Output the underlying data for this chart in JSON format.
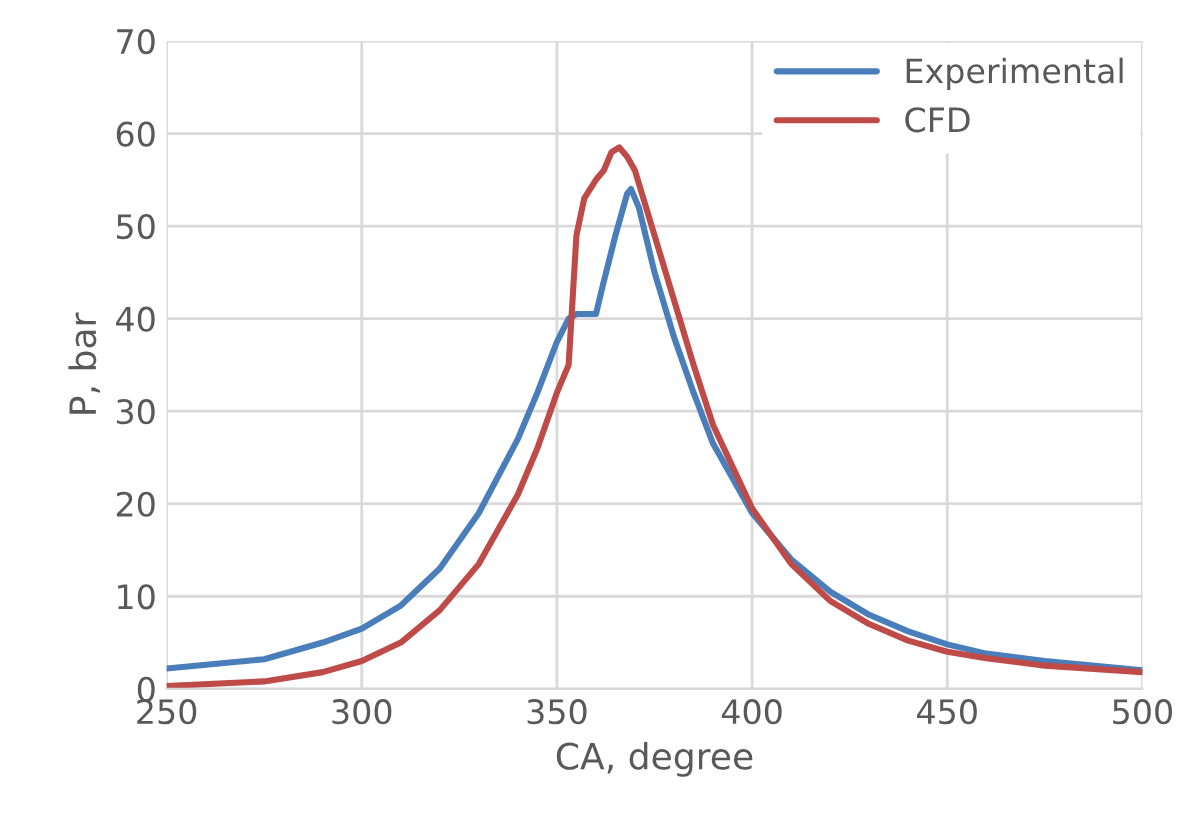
{
  "chart_data": {
    "type": "line",
    "xlabel": "CA, degree",
    "ylabel": "P, bar",
    "xlim": [
      250,
      500
    ],
    "xticks": [
      250,
      300,
      350,
      400,
      450,
      500
    ],
    "ylim": [
      0,
      70
    ],
    "yticks": [
      0,
      10,
      20,
      30,
      40,
      50,
      60,
      70
    ],
    "grid": true,
    "legend": "top right",
    "marker": "none",
    "line_style": "solid",
    "series": [
      {
        "name": "Experimental",
        "color": "#4a7ebb",
        "x": [
          250,
          275,
          290,
          300,
          310,
          320,
          330,
          340,
          345,
          350,
          353,
          355,
          360,
          362,
          365,
          368,
          369,
          371,
          375,
          380,
          385,
          390,
          400,
          410,
          420,
          430,
          440,
          450,
          460,
          475,
          500
        ],
        "values": [
          2.2,
          3.2,
          5,
          6.5,
          9,
          13,
          19,
          27,
          32,
          37.5,
          40,
          40.5,
          40.5,
          44,
          49,
          53.5,
          54,
          52,
          45,
          38,
          32,
          26.5,
          19,
          14,
          10.5,
          8,
          6.2,
          4.8,
          3.8,
          3,
          2
        ]
      },
      {
        "name": "CFD",
        "color": "#be4b48",
        "x": [
          250,
          275,
          290,
          300,
          310,
          320,
          330,
          340,
          345,
          350,
          353,
          355,
          357,
          360,
          362,
          364,
          366,
          368,
          370,
          375,
          380,
          385,
          390,
          400,
          410,
          420,
          430,
          440,
          450,
          460,
          475,
          500
        ],
        "values": [
          0.3,
          0.8,
          1.8,
          3,
          5,
          8.5,
          13.5,
          21,
          26,
          32,
          35,
          49,
          53,
          55,
          56,
          58,
          58.5,
          57.5,
          56,
          49,
          42,
          35,
          28.5,
          19.5,
          13.5,
          9.5,
          7,
          5.2,
          4,
          3.3,
          2.5,
          1.8
        ]
      }
    ]
  }
}
